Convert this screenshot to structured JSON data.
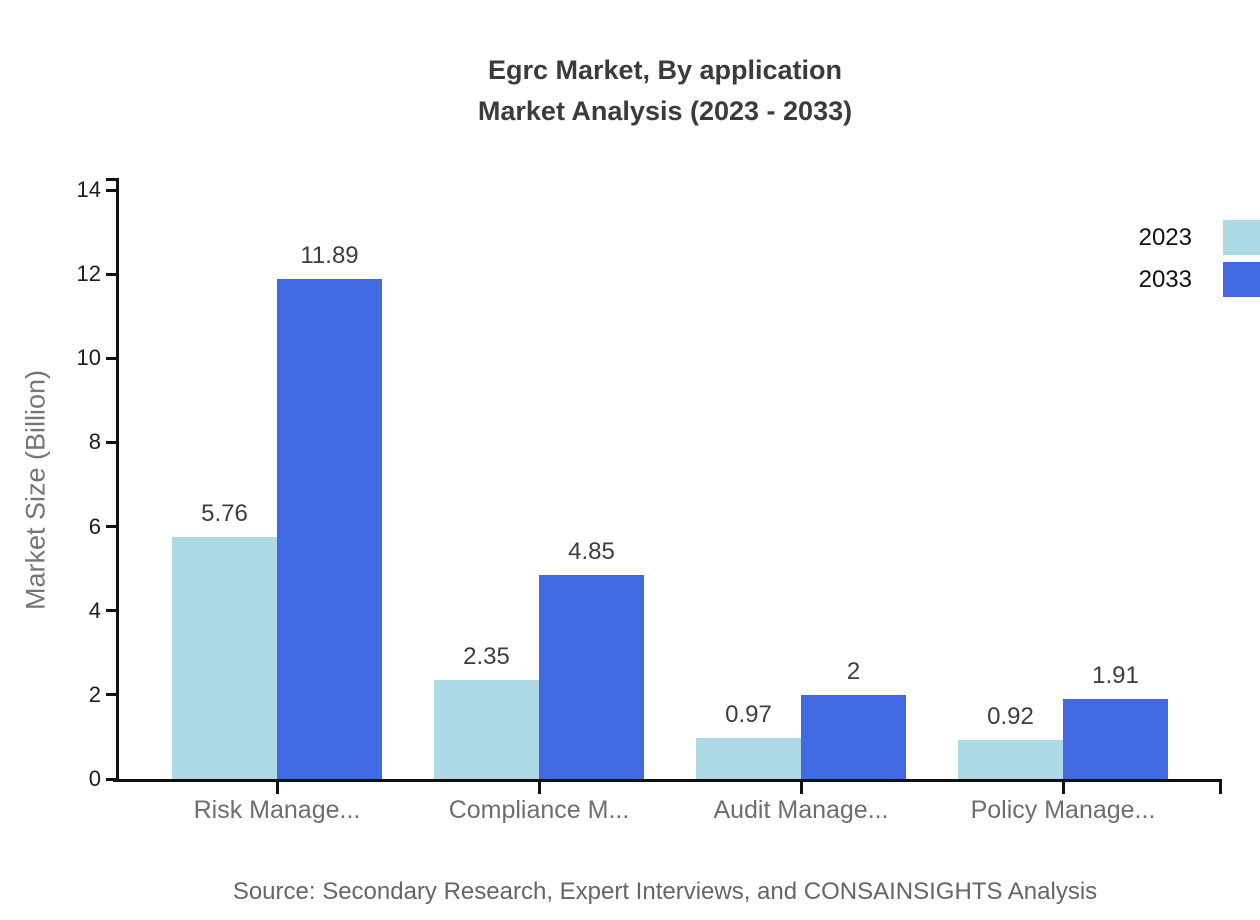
{
  "title": {
    "line1": "Egrc Market, By application",
    "line2": "Market Analysis (2023 - 2033)"
  },
  "chart_data": {
    "type": "bar",
    "title": "Egrc Market, By application Market Analysis (2023 - 2033)",
    "categories": [
      "Risk Manage...",
      "Compliance M...",
      "Audit Manage...",
      "Policy Manage..."
    ],
    "series": [
      {
        "name": "2023",
        "color": "#ADD8E6",
        "values": [
          5.76,
          2.35,
          0.97,
          0.92
        ]
      },
      {
        "name": "2033",
        "color": "#4169E1",
        "values": [
          11.89,
          4.85,
          2,
          1.91
        ]
      }
    ],
    "xlabel": "",
    "ylabel": "Market Size (Billion)",
    "ylim": [
      0,
      14
    ],
    "yticks": [
      0,
      2,
      4,
      6,
      8,
      10,
      12,
      14
    ],
    "grid": false,
    "legend_position": "top-right",
    "bar_value_labels": true
  },
  "legend": {
    "items": [
      {
        "label": "2023",
        "color": "#ADD8E6"
      },
      {
        "label": "2033",
        "color": "#4169E1"
      }
    ]
  },
  "footer": {
    "source": "Source: Secondary Research, Expert Interviews, and CONSAINSIGHTS Analysis"
  },
  "colors": {
    "axis": "#111111",
    "title_text": "#3b3b3b",
    "value_label_text": "#3d3d3d",
    "category_label_text": "#6e6e6e",
    "tick_label_text": "#1c1c1c",
    "source_text": "#666666"
  }
}
